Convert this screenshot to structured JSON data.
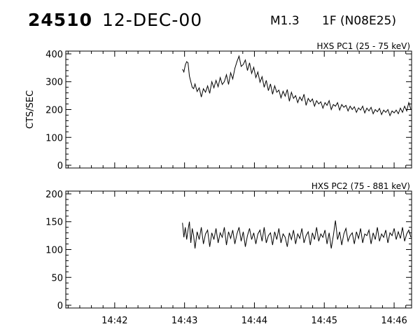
{
  "header": {
    "event_number": "24510",
    "date": "12-DEC-00",
    "goes_class": "M1.3",
    "optical_location": "1F (N08E25)"
  },
  "chart_data": [
    {
      "type": "line",
      "title": "HXS PC1 (25 - 75 keV)",
      "ylabel": "CTS/SEC",
      "xlabel": "",
      "x_tick_labels": [
        "14:42",
        "14:43",
        "14:44",
        "14:45",
        "14:46"
      ],
      "x_ticks_minutes": [
        42,
        43,
        44,
        45,
        46
      ],
      "xlim_minutes": [
        41.3,
        46.25
      ],
      "x_units": "minutes after 14:00 UT",
      "ylim": [
        -10,
        410
      ],
      "yticks": [
        0,
        100,
        200,
        300,
        400
      ],
      "grid": false,
      "series": [
        {
          "x": [
            42.97,
            42.99,
            43.01,
            43.03,
            43.05,
            43.07,
            43.09,
            43.11,
            43.13,
            43.15,
            43.18,
            43.21,
            43.24,
            43.27,
            43.3,
            43.33,
            43.36,
            43.39,
            43.42,
            43.45,
            43.48,
            43.51,
            43.54,
            43.57,
            43.6,
            43.63,
            43.66,
            43.69,
            43.72,
            43.75,
            43.78,
            43.81,
            43.84,
            43.87,
            43.9,
            43.93,
            43.96,
            43.99,
            44.02,
            44.05,
            44.08,
            44.11,
            44.14,
            44.17,
            44.2,
            44.23,
            44.26,
            44.29,
            44.32,
            44.35,
            44.38,
            44.41,
            44.44,
            44.47,
            44.5,
            44.53,
            44.56,
            44.59,
            44.62,
            44.65,
            44.68,
            44.71,
            44.74,
            44.77,
            44.8,
            44.83,
            44.86,
            44.89,
            44.92,
            44.95,
            44.98,
            45.01,
            45.04,
            45.07,
            45.1,
            45.13,
            45.16,
            45.19,
            45.22,
            45.25,
            45.28,
            45.31,
            45.34,
            45.37,
            45.4,
            45.43,
            45.46,
            45.49,
            45.52,
            45.55,
            45.58,
            45.61,
            45.64,
            45.67,
            45.7,
            45.73,
            45.76,
            45.79,
            45.82,
            45.85,
            45.88,
            45.91,
            45.94,
            45.97,
            46.0,
            46.03,
            46.06,
            46.09,
            46.12,
            46.15,
            46.18,
            46.21,
            46.24
          ],
          "y": [
            345,
            335,
            360,
            372,
            368,
            320,
            300,
            280,
            275,
            292,
            265,
            278,
            245,
            275,
            262,
            285,
            258,
            300,
            278,
            305,
            282,
            315,
            290,
            300,
            325,
            290,
            332,
            310,
            348,
            372,
            392,
            355,
            362,
            378,
            340,
            368,
            330,
            352,
            315,
            335,
            298,
            318,
            280,
            305,
            268,
            292,
            255,
            285,
            262,
            270,
            242,
            266,
            248,
            272,
            230,
            262,
            240,
            250,
            225,
            245,
            232,
            255,
            215,
            240,
            228,
            238,
            212,
            232,
            220,
            228,
            205,
            225,
            215,
            232,
            200,
            218,
            212,
            225,
            198,
            218,
            208,
            215,
            195,
            212,
            200,
            210,
            190,
            206,
            198,
            212,
            188,
            205,
            195,
            208,
            185,
            200,
            192,
            204,
            182,
            198,
            190,
            200,
            178,
            195,
            188,
            198,
            185,
            205,
            190,
            212,
            195,
            225,
            200
          ]
        }
      ]
    },
    {
      "type": "line",
      "title": "HXS PC2 (75 - 881 keV)",
      "ylabel": "",
      "xlabel": "",
      "x_tick_labels": [
        "14:42",
        "14:43",
        "14:44",
        "14:45",
        "14:46"
      ],
      "x_ticks_minutes": [
        42,
        43,
        44,
        45,
        46
      ],
      "xlim_minutes": [
        41.3,
        46.25
      ],
      "x_units": "minutes after 14:00 UT",
      "ylim": [
        -5,
        205
      ],
      "yticks": [
        0,
        50,
        100,
        150,
        200
      ],
      "grid": false,
      "series": [
        {
          "x": [
            42.97,
            42.99,
            43.01,
            43.03,
            43.05,
            43.07,
            43.09,
            43.11,
            43.13,
            43.15,
            43.18,
            43.21,
            43.24,
            43.27,
            43.3,
            43.33,
            43.36,
            43.39,
            43.42,
            43.45,
            43.48,
            43.51,
            43.54,
            43.57,
            43.6,
            43.63,
            43.66,
            43.69,
            43.72,
            43.75,
            43.78,
            43.81,
            43.84,
            43.87,
            43.9,
            43.93,
            43.96,
            43.99,
            44.02,
            44.05,
            44.08,
            44.11,
            44.14,
            44.17,
            44.2,
            44.23,
            44.26,
            44.29,
            44.32,
            44.35,
            44.38,
            44.41,
            44.44,
            44.47,
            44.5,
            44.53,
            44.56,
            44.59,
            44.62,
            44.65,
            44.68,
            44.71,
            44.74,
            44.77,
            44.8,
            44.83,
            44.86,
            44.89,
            44.92,
            44.95,
            44.98,
            45.01,
            45.04,
            45.07,
            45.1,
            45.13,
            45.16,
            45.19,
            45.22,
            45.25,
            45.28,
            45.31,
            45.34,
            45.37,
            45.4,
            45.43,
            45.46,
            45.49,
            45.52,
            45.55,
            45.58,
            45.61,
            45.64,
            45.67,
            45.7,
            45.73,
            45.76,
            45.79,
            45.82,
            45.85,
            45.88,
            45.91,
            45.94,
            45.97,
            46.0,
            46.03,
            46.06,
            46.09,
            46.12,
            46.15,
            46.18,
            46.21,
            46.24
          ],
          "y": [
            148,
            122,
            140,
            118,
            135,
            150,
            112,
            138,
            125,
            102,
            132,
            118,
            140,
            110,
            128,
            135,
            105,
            130,
            118,
            138,
            112,
            130,
            122,
            140,
            108,
            132,
            120,
            135,
            110,
            128,
            140,
            115,
            132,
            105,
            125,
            138,
            118,
            130,
            110,
            128,
            135,
            115,
            140,
            112,
            125,
            130,
            108,
            132,
            118,
            138,
            112,
            128,
            122,
            105,
            130,
            118,
            135,
            110,
            128,
            120,
            138,
            112,
            125,
            132,
            108,
            130,
            118,
            140,
            115,
            128,
            122,
            135,
            110,
            130,
            102,
            125,
            152,
            118,
            132,
            108,
            128,
            138,
            115,
            125,
            130,
            110,
            132,
            120,
            138,
            112,
            128,
            125,
            135,
            110,
            130,
            118,
            140,
            115,
            128,
            122,
            135,
            112,
            130,
            125,
            138,
            118,
            132,
            120,
            140,
            115,
            128,
            135,
            122
          ]
        }
      ]
    }
  ]
}
